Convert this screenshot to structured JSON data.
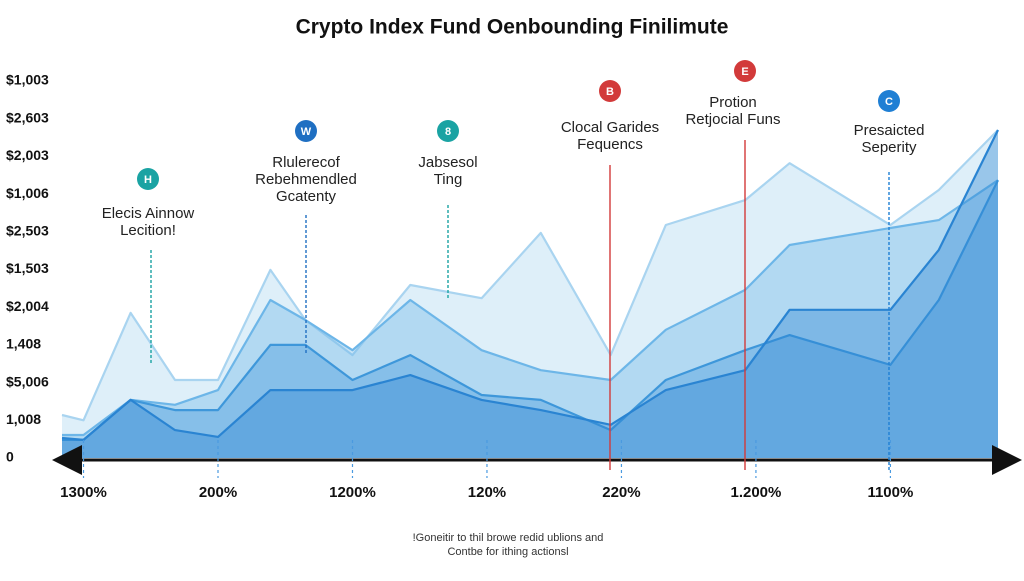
{
  "chart_data": {
    "type": "area",
    "title": "Crypto Index Fund Oenbounding Finilimute",
    "xlim": [
      -0.16,
      6.8
    ],
    "xticks": [
      {
        "value": 0,
        "label": "1300%"
      },
      {
        "value": 1,
        "label": "200%"
      },
      {
        "value": 2,
        "label": "1200%"
      },
      {
        "value": 3,
        "label": "120%"
      },
      {
        "value": 4,
        "label": "220%"
      },
      {
        "value": 5,
        "label": "1.200%"
      },
      {
        "value": 6,
        "label": "1100%"
      }
    ],
    "ylim": [
      0,
      10
    ],
    "yticks": [
      0,
      {
        "value": 1,
        "label": "1,008"
      },
      {
        "value": 2,
        "label": "$5,006"
      },
      {
        "value": 3,
        "label": "1,408"
      },
      {
        "value": 4,
        "label": "$2,004"
      },
      {
        "value": 5,
        "label": "$1,503"
      },
      {
        "value": 6,
        "label": "$2,503"
      },
      {
        "value": 7,
        "label": "$1,006"
      },
      {
        "value": 8,
        "label": "$2,003"
      },
      {
        "value": 9,
        "label": "$2,603"
      },
      {
        "value": 10,
        "label": "$1,003"
      }
    ],
    "x": [
      -0.16,
      0,
      0.35,
      0.68,
      1,
      1.39,
      1.65,
      2,
      2.43,
      2.96,
      3.4,
      3.92,
      4.33,
      4.92,
      5.25,
      6,
      6.36,
      6.8
    ],
    "series": [
      {
        "color": "#a9d4f0",
        "values": [
          1.14,
          1.0,
          3.85,
          2.07,
          2.07,
          4.99,
          3.66,
          2.73,
          4.59,
          4.24,
          5.97,
          2.73,
          6.18,
          6.84,
          7.82,
          6.18,
          7.11,
          8.7
        ]
      },
      {
        "color": "#6db6e8",
        "values": [
          0.61,
          0.61,
          1.54,
          1.41,
          1.8,
          4.19,
          3.66,
          2.86,
          4.19,
          2.86,
          2.33,
          2.07,
          3.4,
          4.46,
          5.65,
          6.1,
          6.31,
          7.37
        ]
      },
      {
        "color": "#3e97da",
        "values": [
          0.48,
          0.48,
          1.54,
          1.27,
          1.27,
          3.0,
          3.0,
          2.07,
          2.73,
          1.67,
          1.54,
          0.74,
          2.07,
          2.86,
          3.26,
          2.47,
          4.19,
          7.37
        ]
      },
      {
        "color": "#2a84d2",
        "values": [
          0.53,
          0.48,
          1.54,
          0.74,
          0.56,
          1.8,
          1.8,
          1.8,
          2.2,
          1.54,
          1.27,
          0.88,
          1.8,
          2.33,
          3.93,
          3.93,
          5.52,
          8.7
        ]
      }
    ],
    "annotations": [
      {
        "icon": "H",
        "color": "#1aa3a3",
        "lines": [
          "Elecis Ainnow",
          "Lecition!"
        ]
      },
      {
        "icon": "W",
        "color": "#1f6fc2",
        "lines": [
          "Rlulerecof",
          "Rebehmendled",
          "Gcatenty"
        ]
      },
      {
        "icon": "8",
        "color": "#1aa3a3",
        "lines": [
          "Jabsesol",
          "Ting"
        ]
      },
      {
        "icon": "B",
        "color": "#d23a3a",
        "lines": [
          "Clocal Garides",
          "Fequencs"
        ]
      },
      {
        "icon": "E",
        "color": "#d23a3a",
        "lines": [
          "Protion",
          "Retjocial Funs"
        ]
      },
      {
        "icon": "C",
        "color": "#1f7fd4",
        "lines": [
          "Presaicted",
          "Seperity"
        ]
      }
    ],
    "footnote": [
      "!Goneitir to thil browe redid ublions and",
      "Contbe for ithing actionsl"
    ]
  }
}
